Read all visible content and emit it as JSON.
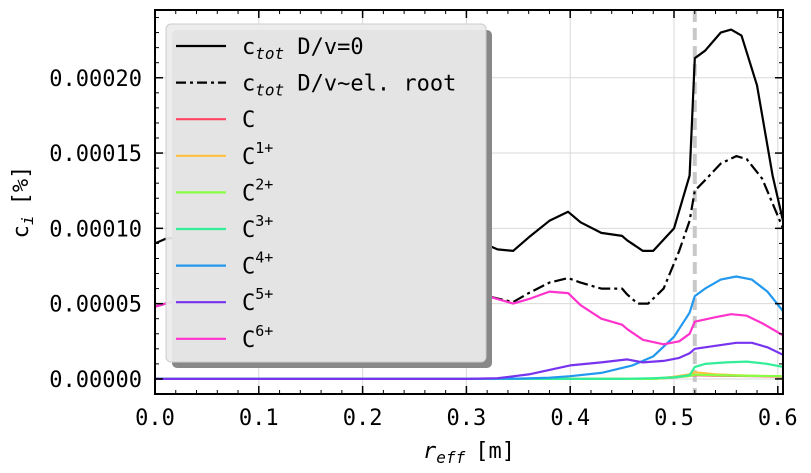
{
  "chart_data": {
    "type": "line",
    "xlabel_main": "r",
    "xlabel_sub": "eff",
    "xlabel_unit": "[m]",
    "ylabel_main": "c",
    "ylabel_sub": "i",
    "ylabel_unit": "[%]",
    "xlim": [
      0.0,
      0.605
    ],
    "ylim": [
      -1e-05,
      0.000245
    ],
    "xticks": [
      0.0,
      0.1,
      0.2,
      0.3,
      0.4,
      0.5,
      0.6
    ],
    "xtick_labels": [
      "0.0",
      "0.1",
      "0.2",
      "0.3",
      "0.4",
      "0.5",
      "0.6"
    ],
    "yticks": [
      0.0,
      5e-05,
      0.0001,
      0.00015,
      0.0002
    ],
    "ytick_labels": [
      "0.00000",
      "0.00005",
      "0.00010",
      "0.00015",
      "0.00020"
    ],
    "grid": true,
    "legend_position": "top-left",
    "vline": {
      "x": 0.52,
      "color": "#c8c8c8"
    },
    "series": [
      {
        "name_main": "c",
        "name_sub": "tot",
        "name_rest": " D/v=0",
        "color": "#000000",
        "dash": "solid",
        "x": [
          0.0,
          0.01,
          0.02,
          0.03,
          0.05,
          0.07,
          0.09,
          0.11,
          0.13,
          0.15,
          0.17,
          0.19,
          0.21,
          0.23,
          0.25,
          0.27,
          0.29,
          0.3,
          0.31,
          0.33,
          0.345,
          0.36,
          0.38,
          0.398,
          0.41,
          0.43,
          0.45,
          0.455,
          0.47,
          0.48,
          0.5,
          0.515,
          0.52,
          0.53,
          0.545,
          0.555,
          0.565,
          0.58,
          0.595,
          0.605
        ],
        "y": [
          9e-05,
          9.3e-05,
          9.4e-05,
          9e-05,
          7.8e-05,
          8e-05,
          8.4e-05,
          7.6e-05,
          7.4e-05,
          8.5e-05,
          9e-05,
          9.2e-05,
          9.2e-05,
          9.1e-05,
          9.2e-05,
          9.9e-05,
          0.000102,
          0.0001,
          9.2e-05,
          8.6e-05,
          8.5e-05,
          9.4e-05,
          0.000105,
          0.000111,
          0.000104,
          9.7e-05,
          9.5e-05,
          9.2e-05,
          8.5e-05,
          8.5e-05,
          0.0001,
          0.000135,
          0.000213,
          0.000218,
          0.00023,
          0.000232,
          0.000228,
          0.000195,
          0.000135,
          0.000105
        ]
      },
      {
        "name_main": "c",
        "name_sub": "tot",
        "name_rest": " D/v∼el. root",
        "color": "#000000",
        "dash": "dashdot",
        "x": [
          0.0,
          0.02,
          0.04,
          0.06,
          0.08,
          0.1,
          0.12,
          0.15,
          0.18,
          0.21,
          0.25,
          0.28,
          0.3,
          0.32,
          0.345,
          0.36,
          0.38,
          0.398,
          0.41,
          0.43,
          0.45,
          0.455,
          0.465,
          0.475,
          0.49,
          0.505,
          0.515,
          0.52,
          0.53,
          0.545,
          0.56,
          0.57,
          0.585,
          0.605
        ],
        "y": [
          4.8e-05,
          5.2e-05,
          4.6e-05,
          4.1e-05,
          4.4e-05,
          4.6e-05,
          4.4e-05,
          4.7e-05,
          5.1e-05,
          5.4e-05,
          5.5e-05,
          6.1e-05,
          6e-05,
          5.5e-05,
          5.1e-05,
          5.7e-05,
          6.4e-05,
          6.7e-05,
          6.4e-05,
          6e-05,
          6e-05,
          5.6e-05,
          5e-05,
          5e-05,
          6e-05,
          8.5e-05,
          0.000105,
          0.000125,
          0.000132,
          0.000143,
          0.000148,
          0.000146,
          0.000133,
          0.0001
        ]
      },
      {
        "name_main": "C",
        "name_sup": "",
        "color": "#ff4466",
        "dash": "solid",
        "x": [
          0.0,
          0.45,
          0.48,
          0.5,
          0.515,
          0.52,
          0.54,
          0.56,
          0.58,
          0.605
        ],
        "y": [
          0.0,
          0.0,
          0.0,
          1e-06,
          2e-06,
          2.5e-06,
          2.2e-06,
          2e-06,
          1.8e-06,
          1.5e-06
        ]
      },
      {
        "name_main": "C",
        "name_sup": "1+",
        "color": "#ffc040",
        "dash": "solid",
        "x": [
          0.0,
          0.45,
          0.48,
          0.5,
          0.515,
          0.52,
          0.54,
          0.56,
          0.58,
          0.605
        ],
        "y": [
          0.0,
          0.0,
          0.0,
          1.5e-06,
          3e-06,
          4.5e-06,
          3e-06,
          2.5e-06,
          2e-06,
          1.8e-06
        ]
      },
      {
        "name_main": "C",
        "name_sup": "2+",
        "color": "#88ff44",
        "dash": "solid",
        "x": [
          0.0,
          0.45,
          0.48,
          0.5,
          0.515,
          0.52,
          0.54,
          0.56,
          0.58,
          0.605
        ],
        "y": [
          0.0,
          0.0,
          0.0,
          1e-06,
          2e-06,
          2.8e-06,
          2.5e-06,
          2.2e-06,
          2e-06,
          1.8e-06
        ]
      },
      {
        "name_main": "C",
        "name_sup": "3+",
        "color": "#33ee99",
        "dash": "solid",
        "x": [
          0.0,
          0.4,
          0.45,
          0.48,
          0.5,
          0.515,
          0.52,
          0.53,
          0.55,
          0.57,
          0.59,
          0.605
        ],
        "y": [
          0.0,
          0.0,
          0.0,
          5e-07,
          1e-06,
          2.5e-06,
          8e-06,
          1e-05,
          1.1e-05,
          1.15e-05,
          1e-05,
          8e-06
        ]
      },
      {
        "name_main": "C",
        "name_sup": "4+",
        "color": "#2299ee",
        "dash": "solid",
        "x": [
          0.0,
          0.3,
          0.35,
          0.38,
          0.4,
          0.43,
          0.46,
          0.48,
          0.5,
          0.515,
          0.52,
          0.53,
          0.545,
          0.56,
          0.575,
          0.59,
          0.605
        ],
        "y": [
          0.0,
          0.0,
          2e-07,
          8e-07,
          1.8e-06,
          4e-06,
          9e-06,
          1.5e-05,
          2.8e-05,
          4.4e-05,
          5.5e-05,
          6e-05,
          6.6e-05,
          6.8e-05,
          6.6e-05,
          5.8e-05,
          4.5e-05
        ]
      },
      {
        "name_main": "C",
        "name_sup": "5+",
        "color": "#7733ee",
        "dash": "solid",
        "x": [
          0.0,
          0.3,
          0.33,
          0.36,
          0.38,
          0.4,
          0.43,
          0.455,
          0.47,
          0.49,
          0.505,
          0.515,
          0.52,
          0.54,
          0.56,
          0.575,
          0.59,
          0.605
        ],
        "y": [
          0.0,
          0.0,
          5e-07,
          3e-06,
          6e-06,
          9e-06,
          1.1e-05,
          1.3e-05,
          1.1e-05,
          1.2e-05,
          1.4e-05,
          1.7e-05,
          2e-05,
          2.2e-05,
          2.4e-05,
          2.4e-05,
          2.1e-05,
          1.6e-05
        ]
      },
      {
        "name_main": "C",
        "name_sup": "6+",
        "color": "#ff33cc",
        "dash": "solid",
        "x": [
          0.0,
          0.02,
          0.04,
          0.06,
          0.08,
          0.1,
          0.12,
          0.15,
          0.18,
          0.21,
          0.25,
          0.28,
          0.3,
          0.32,
          0.345,
          0.36,
          0.38,
          0.398,
          0.41,
          0.43,
          0.45,
          0.455,
          0.47,
          0.49,
          0.505,
          0.515,
          0.52,
          0.54,
          0.555,
          0.57,
          0.585,
          0.605
        ],
        "y": [
          4.8e-05,
          5.2e-05,
          4.6e-05,
          4.1e-05,
          4.4e-05,
          4.6e-05,
          4.4e-05,
          4.7e-05,
          5.1e-05,
          5.4e-05,
          5.5e-05,
          6.1e-05,
          6e-05,
          5.5e-05,
          5e-05,
          5.3e-05,
          5.8e-05,
          5.7e-05,
          4.9e-05,
          4e-05,
          3.6e-05,
          3.3e-05,
          2.6e-05,
          2.3e-05,
          2.5e-05,
          3e-05,
          3.8e-05,
          4.1e-05,
          4.3e-05,
          4.2e-05,
          3.7e-05,
          2.9e-05
        ]
      }
    ]
  }
}
